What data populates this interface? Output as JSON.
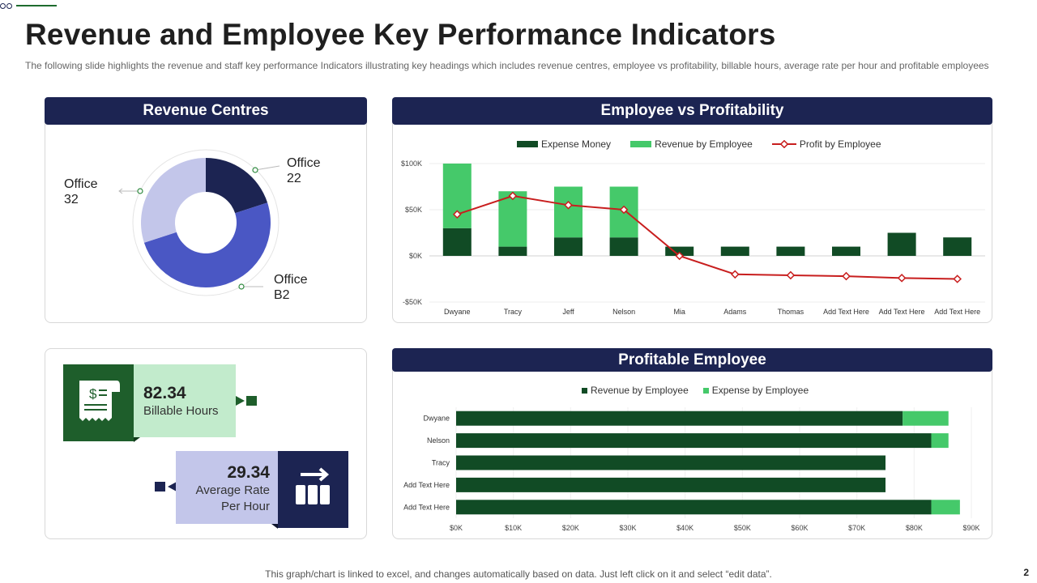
{
  "header": {
    "title": "Revenue and Employee Key Performance Indicators",
    "subtitle": "The following slide highlights the revenue and staff key performance Indicators illustrating key headings which includes revenue centres, employee vs profitability, billable hours, average rate per hour and profitable employees"
  },
  "revenue_centres": {
    "title": "Revenue Centres",
    "labels": [
      {
        "line1": "Office",
        "line2": "22"
      },
      {
        "line1": "Office",
        "line2": "B2"
      },
      {
        "line1": "Office",
        "line2": "32"
      }
    ]
  },
  "employee_vs_profitability": {
    "title": "Employee vs Profitability",
    "legend": [
      "Expense Money",
      "Revenue by Employee",
      "Profit by Employee"
    ]
  },
  "profitable_employee": {
    "title": "Profitable Employee",
    "legend": [
      "Revenue by Employee",
      "Expense by Employee"
    ]
  },
  "kpis": {
    "billable": {
      "value": "82.34",
      "label": "Billable Hours"
    },
    "rate": {
      "value": "29.34",
      "label_line1": "Average Rate",
      "label_line2": "Per Hour"
    }
  },
  "footer": {
    "note": "This graph/chart is linked to excel,  and changes automatically based on data. Just left click on it and select “edit data”.",
    "page": "2"
  },
  "colors": {
    "navy": "#1c2452",
    "dark_green": "#114b25",
    "light_green": "#45c96a",
    "red": "#c81e1e",
    "donut_navy": "#1c2452",
    "donut_blue": "#4a57c4",
    "donut_lavender": "#c3c6ea"
  },
  "chart_data": [
    {
      "type": "pie",
      "title": "Revenue Centres",
      "donut": true,
      "categories": [
        "Office 22",
        "Office B2",
        "Office 32"
      ],
      "values": [
        20,
        50,
        30
      ],
      "colors": [
        "#1c2452",
        "#4a57c4",
        "#c3c6ea"
      ]
    },
    {
      "type": "bar",
      "title": "Employee vs Profitability",
      "stacked": true,
      "categories": [
        "Dwyane",
        "Tracy",
        "Jeff",
        "Nelson",
        "Mia",
        "Adams",
        "Thomas",
        "Add Text Here",
        "Add Text Here",
        "Add Text Here"
      ],
      "series": [
        {
          "name": "Expense Money",
          "kind": "bar",
          "values": [
            30000,
            10000,
            20000,
            20000,
            10000,
            10000,
            10000,
            10000,
            25000,
            20000
          ]
        },
        {
          "name": "Revenue by Employee",
          "kind": "bar",
          "values": [
            70000,
            60000,
            55000,
            55000,
            0,
            0,
            0,
            0,
            0,
            0
          ]
        },
        {
          "name": "Profit by Employee",
          "kind": "line",
          "values": [
            45000,
            65000,
            55000,
            50000,
            0,
            -20000,
            -21000,
            -22000,
            -24000,
            -25000
          ]
        }
      ],
      "ylim": [
        -50000,
        100000
      ],
      "yticks": [
        -50000,
        0,
        50000,
        100000
      ],
      "ytick_labels": [
        "-$50K",
        "$0K",
        "$50K",
        "$100K"
      ]
    },
    {
      "type": "bar",
      "orientation": "horizontal",
      "title": "Profitable Employee",
      "stacked": true,
      "categories": [
        "Dwyane",
        "Nelson",
        "Tracy",
        "Add Text Here",
        "Add Text Here"
      ],
      "series": [
        {
          "name": "Revenue by Employee",
          "values": [
            78000,
            83000,
            75000,
            75000,
            83000
          ]
        },
        {
          "name": "Expense by Employee",
          "values": [
            8000,
            3000,
            0,
            0,
            5000
          ]
        }
      ],
      "xlim": [
        0,
        90000
      ],
      "xticks": [
        0,
        10000,
        20000,
        30000,
        40000,
        50000,
        60000,
        70000,
        80000,
        90000
      ],
      "xtick_labels": [
        "$0K",
        "$10K",
        "$20K",
        "$30K",
        "$40K",
        "$50K",
        "$60K",
        "$70K",
        "$80K",
        "$90K"
      ]
    }
  ]
}
